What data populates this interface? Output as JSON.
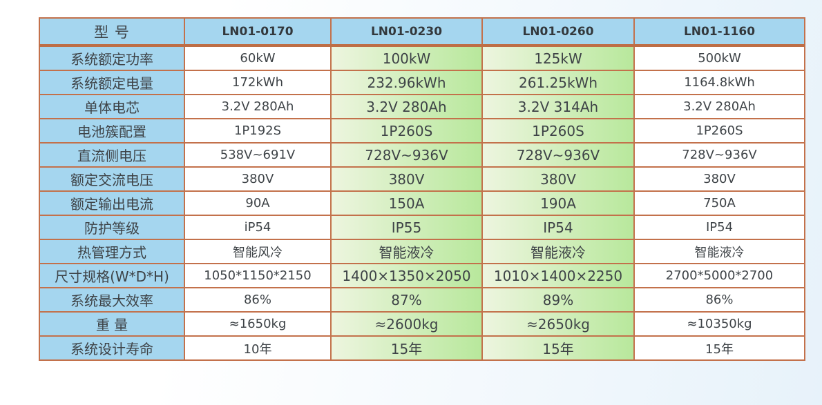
{
  "table": {
    "header": {
      "label": "型 号",
      "models": [
        "LN01-0170",
        "LN01-0230",
        "LN01-0260",
        "LN01-1160"
      ]
    },
    "rows": [
      {
        "label": "系统额定功率",
        "values": [
          "60kW",
          "100kW",
          "125kW",
          "500kW"
        ]
      },
      {
        "label": "系统额定电量",
        "values": [
          "172kWh",
          "232.96kWh",
          "261.25kWh",
          "1164.8kWh"
        ]
      },
      {
        "label": "单体电芯",
        "values": [
          "3.2V 280Ah",
          "3.2V 280Ah",
          "3.2V 314Ah",
          "3.2V 280Ah"
        ]
      },
      {
        "label": "电池簇配置",
        "values": [
          "1P192S",
          "1P260S",
          "1P260S",
          "1P260S"
        ]
      },
      {
        "label": "直流侧电压",
        "values": [
          "538V~691V",
          "728V~936V",
          "728V~936V",
          "728V~936V"
        ]
      },
      {
        "label": "额定交流电压",
        "values": [
          "380V",
          "380V",
          "380V",
          "380V"
        ]
      },
      {
        "label": "额定输出电流",
        "values": [
          "90A",
          "150A",
          "190A",
          "750A"
        ]
      },
      {
        "label": "防护等级",
        "values": [
          "iP54",
          "IP55",
          "IP54",
          "IP54"
        ]
      },
      {
        "label": "热管理方式",
        "values": [
          "智能风冷",
          "智能液冷",
          "智能液冷",
          "智能液冷"
        ]
      },
      {
        "label": "尺寸规格(W*D*H)",
        "values": [
          "1050*1150*2150",
          "1400×1350×2050",
          "1010×1400×2250",
          "2700*5000*2700"
        ]
      },
      {
        "label": "系统最大效率",
        "values": [
          "86%",
          "87%",
          "89%",
          "86%"
        ]
      },
      {
        "label": "重 量",
        "values": [
          "≈1650kg",
          "≈2600kg",
          "≈2650kg",
          "≈10350kg"
        ]
      },
      {
        "label": "系统设计寿命",
        "values": [
          "10年",
          "15年",
          "15年",
          "15年"
        ]
      }
    ],
    "highlight_columns": [
      1,
      2
    ],
    "colors": {
      "header_bg": "#A5D6EF",
      "label_bg": "#A5D6EF",
      "border": "#C3714B",
      "header_divider": "#BE6E46",
      "green_start": "#EDF5DF",
      "green_end": "#B8E89C",
      "text": "#3E4347"
    }
  }
}
